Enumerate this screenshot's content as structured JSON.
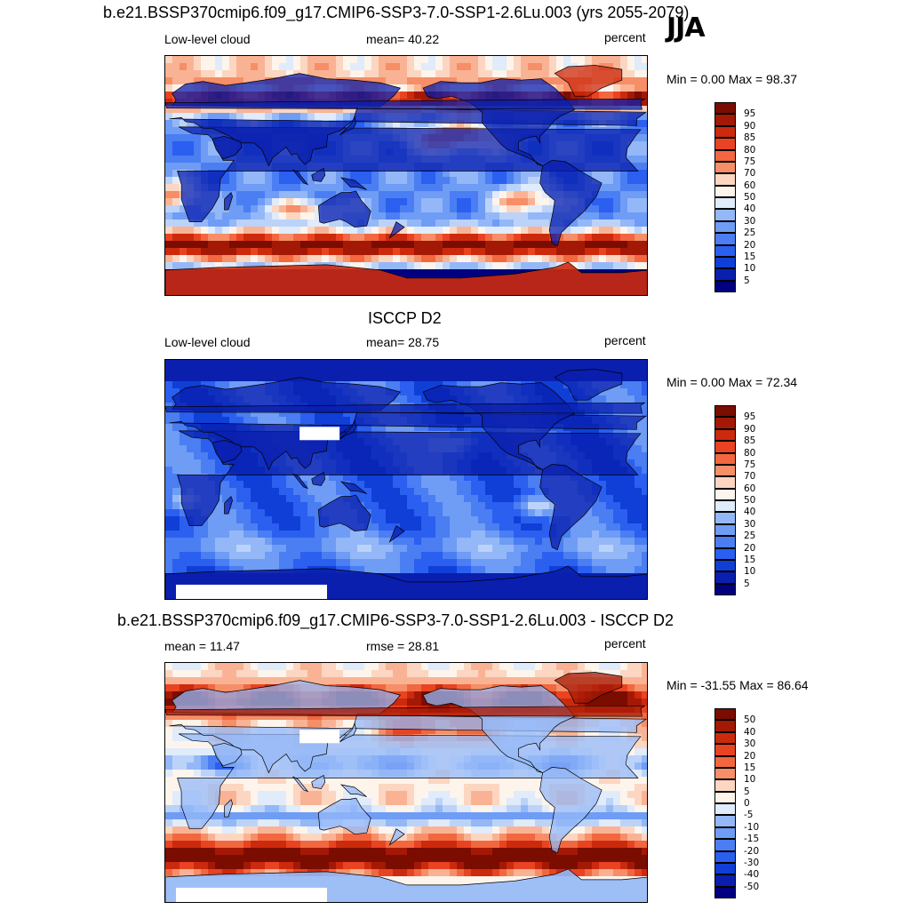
{
  "season": "JJA",
  "palette": [
    "#000080",
    "#0a1fae",
    "#0f3fd6",
    "#2a5ff0",
    "#4a7ef2",
    "#6f9cf5",
    "#94b8f7",
    "#bcd3f9",
    "#e0ebfb",
    "#fdf4ec",
    "#fcd6c1",
    "#f9b394",
    "#f68e67",
    "#f2673f",
    "#e94322",
    "#cc2a0d",
    "#a41806",
    "#7a0d00"
  ],
  "land_color": "#0b2fbd",
  "panels": [
    {
      "title": "b.e21.BSSP370cmip6.f09_g17.CMIP6-SSP3-7.0-SSP1-2.6Lu.003 (yrs 2055-2079)",
      "left_label": "Low-level cloud",
      "center_label": "mean=  40.22",
      "right_label": "percent",
      "minmax": "Min =   0.00 Max =  98.37",
      "legend_labels": [
        "95",
        "90",
        "85",
        "80",
        "75",
        "70",
        "60",
        "50",
        "40",
        "30",
        "25",
        "20",
        "15",
        "10",
        "5"
      ],
      "field": "model"
    },
    {
      "title": "ISCCP D2",
      "left_label": "Low-level cloud",
      "center_label": "mean=  28.75",
      "right_label": "percent",
      "minmax": "Min =   0.00 Max =  72.34",
      "legend_labels": [
        "95",
        "90",
        "85",
        "80",
        "75",
        "70",
        "60",
        "50",
        "40",
        "30",
        "25",
        "20",
        "15",
        "10",
        "5"
      ],
      "field": "obs"
    },
    {
      "title": "b.e21.BSSP370cmip6.f09_g17.CMIP6-SSP3-7.0-SSP1-2.6Lu.003 - ISCCP D2",
      "left_label": "mean =  11.47",
      "center_label": "rmse =  28.81",
      "right_label": "percent",
      "minmax": "Min = -31.55 Max =  86.64",
      "legend_labels": [
        "50",
        "40",
        "30",
        "20",
        "15",
        "10",
        "5",
        "0",
        "-5",
        "-10",
        "-15",
        "-20",
        "-30",
        "-40",
        "-50"
      ],
      "field": "diff"
    }
  ]
}
